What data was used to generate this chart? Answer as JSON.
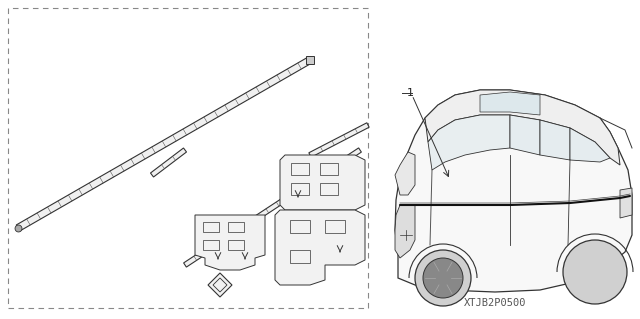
{
  "bg_color": "#ffffff",
  "border_color": "#666666",
  "text_color": "#222222",
  "part_number_label": "1",
  "part_code": "XTJB2P0500",
  "fig_width": 6.4,
  "fig_height": 3.19,
  "dpi": 100,
  "label_fontsize": 8,
  "code_fontsize": 7.5,
  "line_color": "#333333",
  "hatch_color": "#555555"
}
